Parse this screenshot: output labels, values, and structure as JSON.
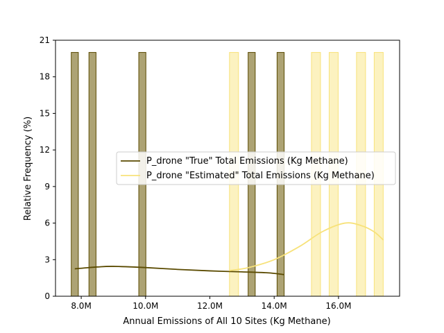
{
  "chart_data": {
    "type": "bar",
    "xlabel": "Annual Emissions of All 10 Sites (Kg Methane)",
    "ylabel": "Relative Frequency (%)",
    "xlim": [
      7.2,
      17.9
    ],
    "ylim": [
      0,
      21
    ],
    "x_ticks": [
      {
        "value": 8.0,
        "label": "8.0M"
      },
      {
        "value": 10.0,
        "label": "10.0M"
      },
      {
        "value": 12.0,
        "label": "12.0M"
      },
      {
        "value": 14.0,
        "label": "14.0M"
      },
      {
        "value": 16.0,
        "label": "16.0M"
      }
    ],
    "y_ticks": [
      0,
      3,
      6,
      9,
      12,
      15,
      18,
      21
    ],
    "legend_position": "center-right",
    "series": [
      {
        "name": "P_drone \"True\" Total Emissions (Kg Methane)",
        "line_color": "#5a4a00",
        "bar_fill": "#ada374",
        "bar_edge": "#5a4a00",
        "bin_width": 0.22,
        "bins": [
          {
            "x": 7.8,
            "value": 20
          },
          {
            "x": 8.35,
            "value": 20
          },
          {
            "x": 9.9,
            "value": 20
          },
          {
            "x": 13.3,
            "value": 20
          },
          {
            "x": 14.2,
            "value": 20
          }
        ],
        "kde": [
          {
            "x": 7.8,
            "y": 2.25
          },
          {
            "x": 8.5,
            "y": 2.4
          },
          {
            "x": 9.0,
            "y": 2.45
          },
          {
            "x": 10.0,
            "y": 2.35
          },
          {
            "x": 11.0,
            "y": 2.2
          },
          {
            "x": 12.0,
            "y": 2.08
          },
          {
            "x": 13.0,
            "y": 2.0
          },
          {
            "x": 13.8,
            "y": 1.92
          },
          {
            "x": 14.3,
            "y": 1.78
          }
        ]
      },
      {
        "name": "P_drone \"Estimated\" Total Emissions (Kg Methane)",
        "line_color": "#f7e27a",
        "bar_fill": "#fcf2c0",
        "bar_edge": "#f7e27a",
        "bin_width": 0.28,
        "bins": [
          {
            "x": 12.75,
            "value": 20
          },
          {
            "x": 15.3,
            "value": 20
          },
          {
            "x": 15.85,
            "value": 20
          },
          {
            "x": 16.7,
            "value": 20
          },
          {
            "x": 17.25,
            "value": 20
          }
        ],
        "kde": [
          {
            "x": 12.6,
            "y": 2.1
          },
          {
            "x": 13.2,
            "y": 2.35
          },
          {
            "x": 14.0,
            "y": 3.0
          },
          {
            "x": 14.8,
            "y": 4.1
          },
          {
            "x": 15.5,
            "y": 5.3
          },
          {
            "x": 16.2,
            "y": 6.0
          },
          {
            "x": 16.7,
            "y": 5.8
          },
          {
            "x": 17.1,
            "y": 5.3
          },
          {
            "x": 17.4,
            "y": 4.6
          }
        ]
      }
    ]
  }
}
